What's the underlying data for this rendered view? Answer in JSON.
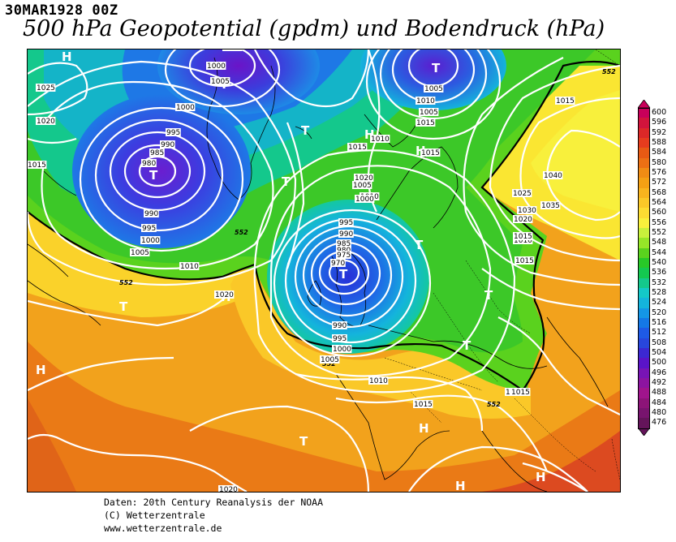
{
  "header": {
    "date_stamp": "30MAR1928 00Z",
    "title": "500 hPa Geopotential (gpdm) und Bodendruck (hPa)"
  },
  "credits": {
    "line1": "Daten: 20th Century Reanalysis der NOAA",
    "line2": "(C) Wetterzentrale",
    "line3": "www.wetterzentrale.de"
  },
  "legend": {
    "levels": [
      "600",
      "596",
      "592",
      "588",
      "584",
      "580",
      "576",
      "572",
      "568",
      "564",
      "560",
      "556",
      "552",
      "548",
      "544",
      "540",
      "536",
      "532",
      "528",
      "524",
      "520",
      "516",
      "512",
      "508",
      "504",
      "500",
      "496",
      "492",
      "488",
      "484",
      "480",
      "476"
    ],
    "colors": [
      "#c8005a",
      "#d2143c",
      "#dc2828",
      "#e63c1e",
      "#e85a14",
      "#ec7014",
      "#f08c14",
      "#f4a014",
      "#f8b41e",
      "#fac828",
      "#fcdc32",
      "#f8f03c",
      "#c8f03c",
      "#96e628",
      "#5ad21e",
      "#28c828",
      "#14c850",
      "#14c88c",
      "#14c8c8",
      "#14b4dc",
      "#1496e6",
      "#1478e6",
      "#1e5ae6",
      "#2846dc",
      "#3c28d2",
      "#5a14c8",
      "#7814b4",
      "#8c14a0",
      "#a0148c",
      "#8c1478",
      "#78146e",
      "#64145a"
    ]
  },
  "map": {
    "highs": [
      {
        "label": "H"
      },
      {
        "label": "H"
      },
      {
        "label": "H"
      },
      {
        "label": "H"
      },
      {
        "label": "H"
      },
      {
        "label": "H"
      },
      {
        "label": "H"
      },
      {
        "label": "H"
      }
    ],
    "lows": [
      {
        "label": "T"
      },
      {
        "label": "T"
      },
      {
        "label": "T"
      },
      {
        "label": "T"
      },
      {
        "label": "T"
      },
      {
        "label": "T"
      },
      {
        "label": "T"
      },
      {
        "label": "T"
      },
      {
        "label": "T"
      },
      {
        "label": "T"
      },
      {
        "label": "T"
      }
    ],
    "isobar_labels": [
      "1025",
      "1020",
      "1015",
      "995",
      "990",
      "985",
      "980",
      "1000",
      "990",
      "995",
      "1000",
      "1005",
      "1010",
      "1000",
      "1005",
      "1010",
      "1015",
      "1020",
      "1010",
      "1005",
      "1000",
      "995",
      "990",
      "985",
      "980",
      "975",
      "970",
      "990",
      "995",
      "1000",
      "1005",
      "1010",
      "1015",
      "1010",
      "1015",
      "1020",
      "1005",
      "1010",
      "1005",
      "1015",
      "1010",
      "1015",
      "1020",
      "1025",
      "1030",
      "1035",
      "1040",
      "1015",
      "1020",
      "1010",
      "1015",
      "1015"
    ],
    "gpdm_labels": [
      "552",
      "552",
      "552",
      "552",
      "552",
      "552"
    ]
  }
}
